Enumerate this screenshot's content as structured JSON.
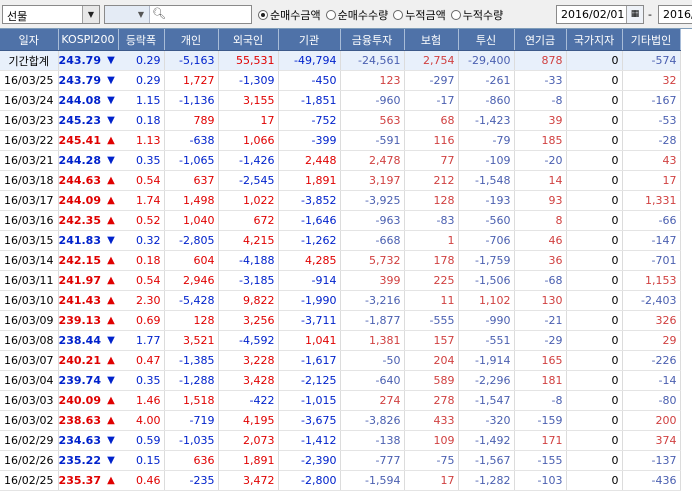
{
  "toolbar": {
    "market_select": "선물",
    "radio_options": [
      {
        "label": "순매수금액",
        "selected": true
      },
      {
        "label": "순매수수량",
        "selected": false
      },
      {
        "label": "누적금액",
        "selected": false
      },
      {
        "label": "누적수량",
        "selected": false
      }
    ],
    "start_date": "2016/02/01",
    "date_separator": "-",
    "end_date": "2016/0"
  },
  "table": {
    "headers": [
      "일자",
      "KOSPI200",
      "등락폭",
      "개인",
      "외국인",
      "기관",
      "금융투자",
      "보험",
      "투신",
      "연기금",
      "국가지자",
      "기타법인"
    ],
    "colors": {
      "up": "#e00000",
      "down": "#0022cc",
      "header_bg": "#4f72a8",
      "total_bg": "#e8f0fb"
    },
    "rows": [
      {
        "date": "기간합계",
        "k200": "243.79",
        "dir": "down",
        "chg": "0.29",
        "ind": "-5,163",
        "frn": "55,531",
        "org": "-49,794",
        "fin": "-24,561",
        "ins": "2,754",
        "inv": "-29,400",
        "pen": "878",
        "gov": "0",
        "etc": "-574"
      },
      {
        "date": "16/03/25",
        "k200": "243.79",
        "dir": "down",
        "chg": "0.29",
        "ind": "1,727",
        "frn": "-1,309",
        "org": "-450",
        "fin": "123",
        "ins": "-297",
        "inv": "-261",
        "pen": "-33",
        "gov": "0",
        "etc": "32"
      },
      {
        "date": "16/03/24",
        "k200": "244.08",
        "dir": "down",
        "chg": "1.15",
        "ind": "-1,136",
        "frn": "3,155",
        "org": "-1,851",
        "fin": "-960",
        "ins": "-17",
        "inv": "-860",
        "pen": "-8",
        "gov": "0",
        "etc": "-167"
      },
      {
        "date": "16/03/23",
        "k200": "245.23",
        "dir": "down",
        "chg": "0.18",
        "ind": "789",
        "frn": "17",
        "org": "-752",
        "fin": "563",
        "ins": "68",
        "inv": "-1,423",
        "pen": "39",
        "gov": "0",
        "etc": "-53"
      },
      {
        "date": "16/03/22",
        "k200": "245.41",
        "dir": "up",
        "chg": "1.13",
        "ind": "-638",
        "frn": "1,066",
        "org": "-399",
        "fin": "-591",
        "ins": "116",
        "inv": "-79",
        "pen": "185",
        "gov": "0",
        "etc": "-28"
      },
      {
        "date": "16/03/21",
        "k200": "244.28",
        "dir": "down",
        "chg": "0.35",
        "ind": "-1,065",
        "frn": "-1,426",
        "org": "2,448",
        "fin": "2,478",
        "ins": "77",
        "inv": "-109",
        "pen": "-20",
        "gov": "0",
        "etc": "43"
      },
      {
        "date": "16/03/18",
        "k200": "244.63",
        "dir": "up",
        "chg": "0.54",
        "ind": "637",
        "frn": "-2,545",
        "org": "1,891",
        "fin": "3,197",
        "ins": "212",
        "inv": "-1,548",
        "pen": "14",
        "gov": "0",
        "etc": "17"
      },
      {
        "date": "16/03/17",
        "k200": "244.09",
        "dir": "up",
        "chg": "1.74",
        "ind": "1,498",
        "frn": "1,022",
        "org": "-3,852",
        "fin": "-3,925",
        "ins": "128",
        "inv": "-193",
        "pen": "93",
        "gov": "0",
        "etc": "1,331"
      },
      {
        "date": "16/03/16",
        "k200": "242.35",
        "dir": "up",
        "chg": "0.52",
        "ind": "1,040",
        "frn": "672",
        "org": "-1,646",
        "fin": "-963",
        "ins": "-83",
        "inv": "-560",
        "pen": "8",
        "gov": "0",
        "etc": "-66"
      },
      {
        "date": "16/03/15",
        "k200": "241.83",
        "dir": "down",
        "chg": "0.32",
        "ind": "-2,805",
        "frn": "4,215",
        "org": "-1,262",
        "fin": "-668",
        "ins": "1",
        "inv": "-706",
        "pen": "46",
        "gov": "0",
        "etc": "-147"
      },
      {
        "date": "16/03/14",
        "k200": "242.15",
        "dir": "up",
        "chg": "0.18",
        "ind": "604",
        "frn": "-4,188",
        "org": "4,285",
        "fin": "5,732",
        "ins": "178",
        "inv": "-1,759",
        "pen": "36",
        "gov": "0",
        "etc": "-701"
      },
      {
        "date": "16/03/11",
        "k200": "241.97",
        "dir": "up",
        "chg": "0.54",
        "ind": "2,946",
        "frn": "-3,185",
        "org": "-914",
        "fin": "399",
        "ins": "225",
        "inv": "-1,506",
        "pen": "-68",
        "gov": "0",
        "etc": "1,153"
      },
      {
        "date": "16/03/10",
        "k200": "241.43",
        "dir": "up",
        "chg": "2.30",
        "ind": "-5,428",
        "frn": "9,822",
        "org": "-1,990",
        "fin": "-3,216",
        "ins": "11",
        "inv": "1,102",
        "pen": "130",
        "gov": "0",
        "etc": "-2,403"
      },
      {
        "date": "16/03/09",
        "k200": "239.13",
        "dir": "up",
        "chg": "0.69",
        "ind": "128",
        "frn": "3,256",
        "org": "-3,711",
        "fin": "-1,877",
        "ins": "-555",
        "inv": "-990",
        "pen": "-21",
        "gov": "0",
        "etc": "326"
      },
      {
        "date": "16/03/08",
        "k200": "238.44",
        "dir": "down",
        "chg": "1.77",
        "ind": "3,521",
        "frn": "-4,592",
        "org": "1,041",
        "fin": "1,381",
        "ins": "157",
        "inv": "-551",
        "pen": "-29",
        "gov": "0",
        "etc": "29"
      },
      {
        "date": "16/03/07",
        "k200": "240.21",
        "dir": "up",
        "chg": "0.47",
        "ind": "-1,385",
        "frn": "3,228",
        "org": "-1,617",
        "fin": "-50",
        "ins": "204",
        "inv": "-1,914",
        "pen": "165",
        "gov": "0",
        "etc": "-226"
      },
      {
        "date": "16/03/04",
        "k200": "239.74",
        "dir": "down",
        "chg": "0.35",
        "ind": "-1,288",
        "frn": "3,428",
        "org": "-2,125",
        "fin": "-640",
        "ins": "589",
        "inv": "-2,296",
        "pen": "181",
        "gov": "0",
        "etc": "-14"
      },
      {
        "date": "16/03/03",
        "k200": "240.09",
        "dir": "up",
        "chg": "1.46",
        "ind": "1,518",
        "frn": "-422",
        "org": "-1,015",
        "fin": "274",
        "ins": "278",
        "inv": "-1,547",
        "pen": "-8",
        "gov": "0",
        "etc": "-80"
      },
      {
        "date": "16/03/02",
        "k200": "238.63",
        "dir": "up",
        "chg": "4.00",
        "ind": "-719",
        "frn": "4,195",
        "org": "-3,675",
        "fin": "-3,826",
        "ins": "433",
        "inv": "-320",
        "pen": "-159",
        "gov": "0",
        "etc": "200"
      },
      {
        "date": "16/02/29",
        "k200": "234.63",
        "dir": "down",
        "chg": "0.59",
        "ind": "-1,035",
        "frn": "2,073",
        "org": "-1,412",
        "fin": "-138",
        "ins": "109",
        "inv": "-1,492",
        "pen": "171",
        "gov": "0",
        "etc": "374"
      },
      {
        "date": "16/02/26",
        "k200": "235.22",
        "dir": "down",
        "chg": "0.15",
        "ind": "636",
        "frn": "1,891",
        "org": "-2,390",
        "fin": "-777",
        "ins": "-75",
        "inv": "-1,567",
        "pen": "-155",
        "gov": "0",
        "etc": "-137"
      },
      {
        "date": "16/02/25",
        "k200": "235.37",
        "dir": "up",
        "chg": "0.46",
        "ind": "-235",
        "frn": "3,472",
        "org": "-2,800",
        "fin": "-1,594",
        "ins": "17",
        "inv": "-1,282",
        "pen": "-103",
        "gov": "0",
        "etc": "-436"
      }
    ]
  }
}
